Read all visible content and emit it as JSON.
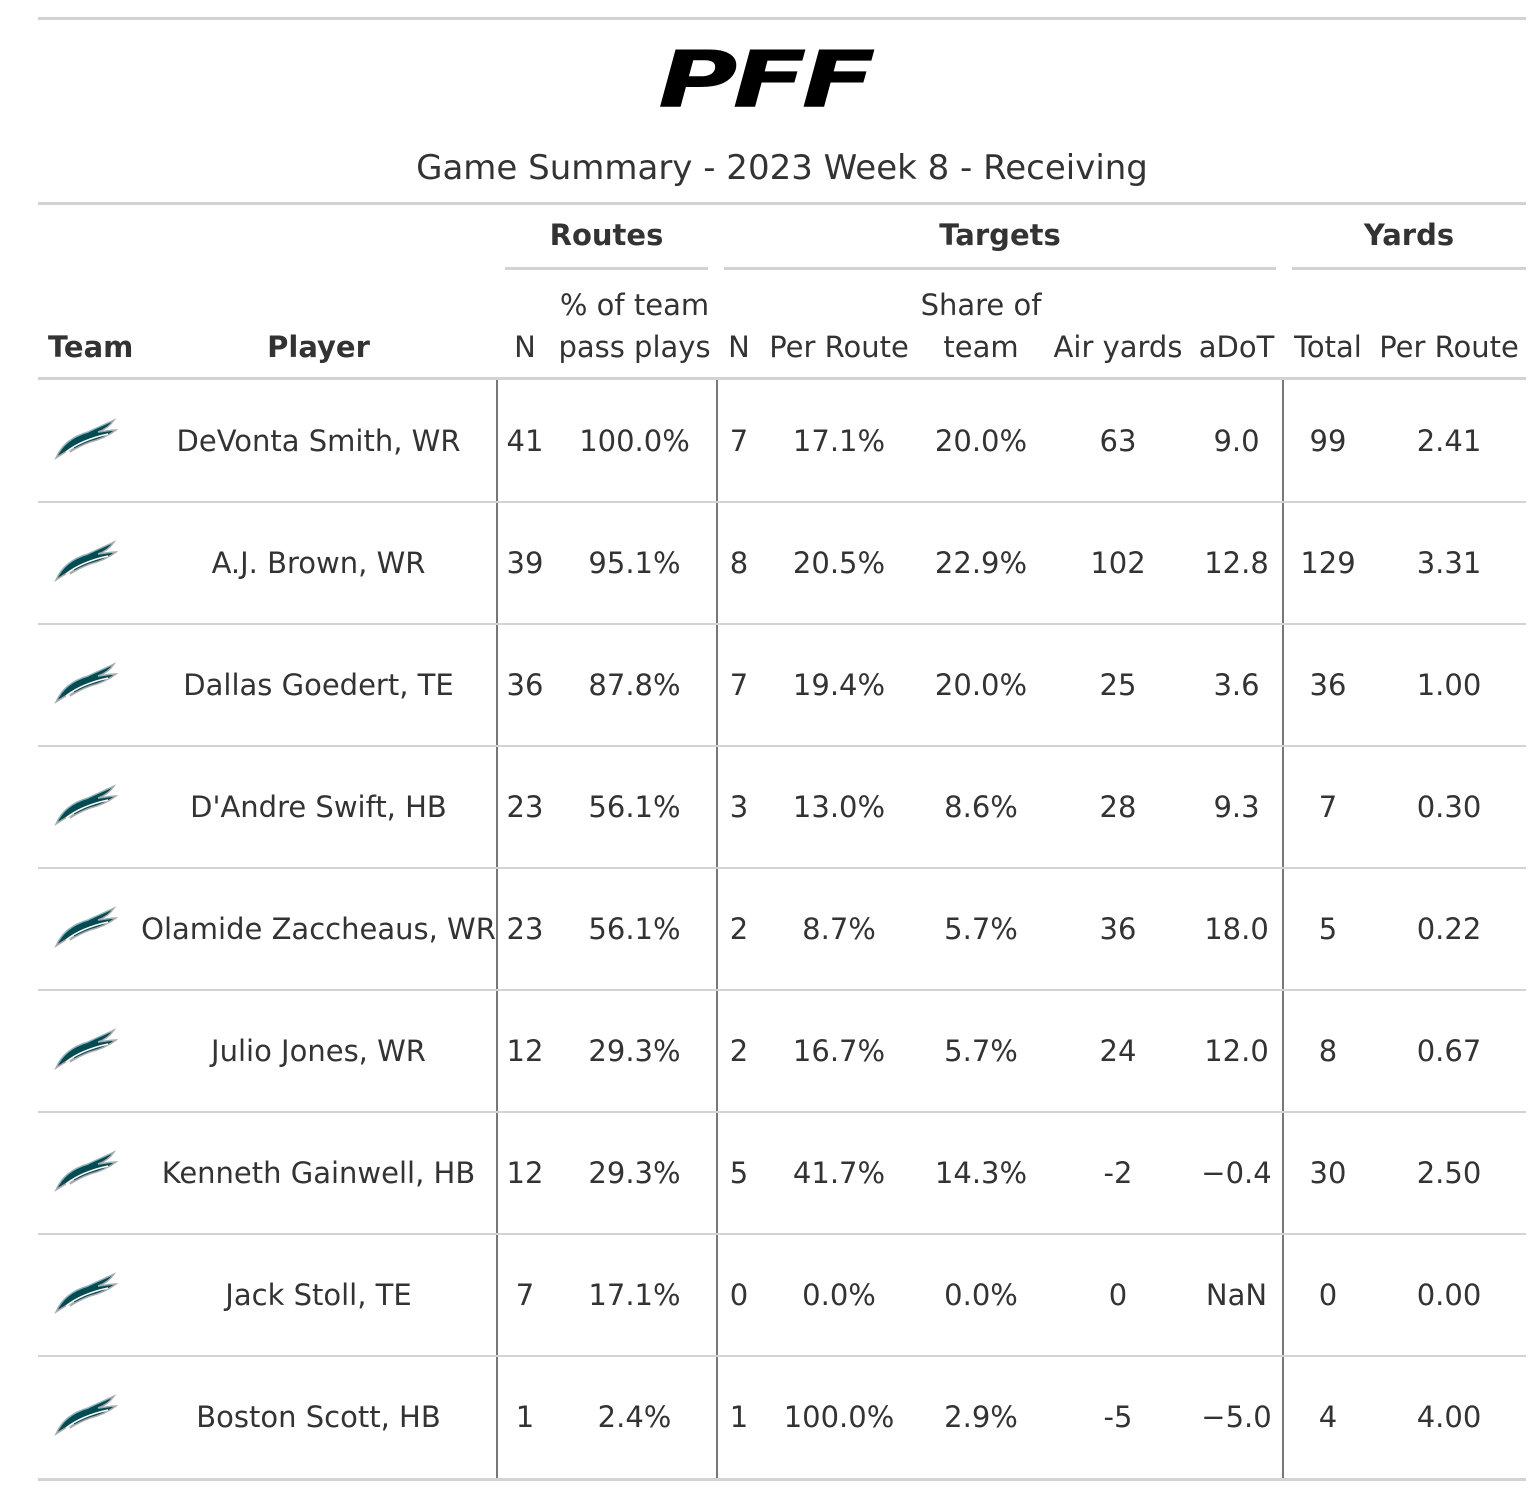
{
  "logo": "PFF",
  "title": "Game Summary - 2023 Week 8 - Receiving",
  "spanners": [
    "Routes",
    "Targets",
    "Yards"
  ],
  "columns": [
    "Team",
    "Player",
    "N",
    "% of team pass plays",
    "N",
    "Per Route",
    "Share of team",
    "Air yards",
    "aDoT",
    "Total",
    "Per Route"
  ],
  "rows": [
    [
      "DeVonta Smith, WR",
      "41",
      "100.0%",
      "7",
      "17.1%",
      "20.0%",
      "63",
      "9.0",
      "99",
      "2.41"
    ],
    [
      "A.J. Brown, WR",
      "39",
      "95.1%",
      "8",
      "20.5%",
      "22.9%",
      "102",
      "12.8",
      "129",
      "3.31"
    ],
    [
      "Dallas Goedert, TE",
      "36",
      "87.8%",
      "7",
      "19.4%",
      "20.0%",
      "25",
      "3.6",
      "36",
      "1.00"
    ],
    [
      "D'Andre Swift, HB",
      "23",
      "56.1%",
      "3",
      "13.0%",
      "8.6%",
      "28",
      "9.3",
      "7",
      "0.30"
    ],
    [
      "Olamide Zaccheaus, WR",
      "23",
      "56.1%",
      "2",
      "8.7%",
      "5.7%",
      "36",
      "18.0",
      "5",
      "0.22"
    ],
    [
      "Julio Jones, WR",
      "12",
      "29.3%",
      "2",
      "16.7%",
      "5.7%",
      "24",
      "12.0",
      "8",
      "0.67"
    ],
    [
      "Kenneth Gainwell, HB",
      "12",
      "29.3%",
      "5",
      "41.7%",
      "14.3%",
      "-2",
      "−0.4",
      "30",
      "2.50"
    ],
    [
      "Jack Stoll, TE",
      "7",
      "17.1%",
      "0",
      "0.0%",
      "0.0%",
      "0",
      "NaN",
      "0",
      "0.00"
    ],
    [
      "Boston Scott, HB",
      "1",
      "2.4%",
      "1",
      "100.0%",
      "2.9%",
      "-5",
      "−5.0",
      "4",
      "4.00"
    ]
  ]
}
